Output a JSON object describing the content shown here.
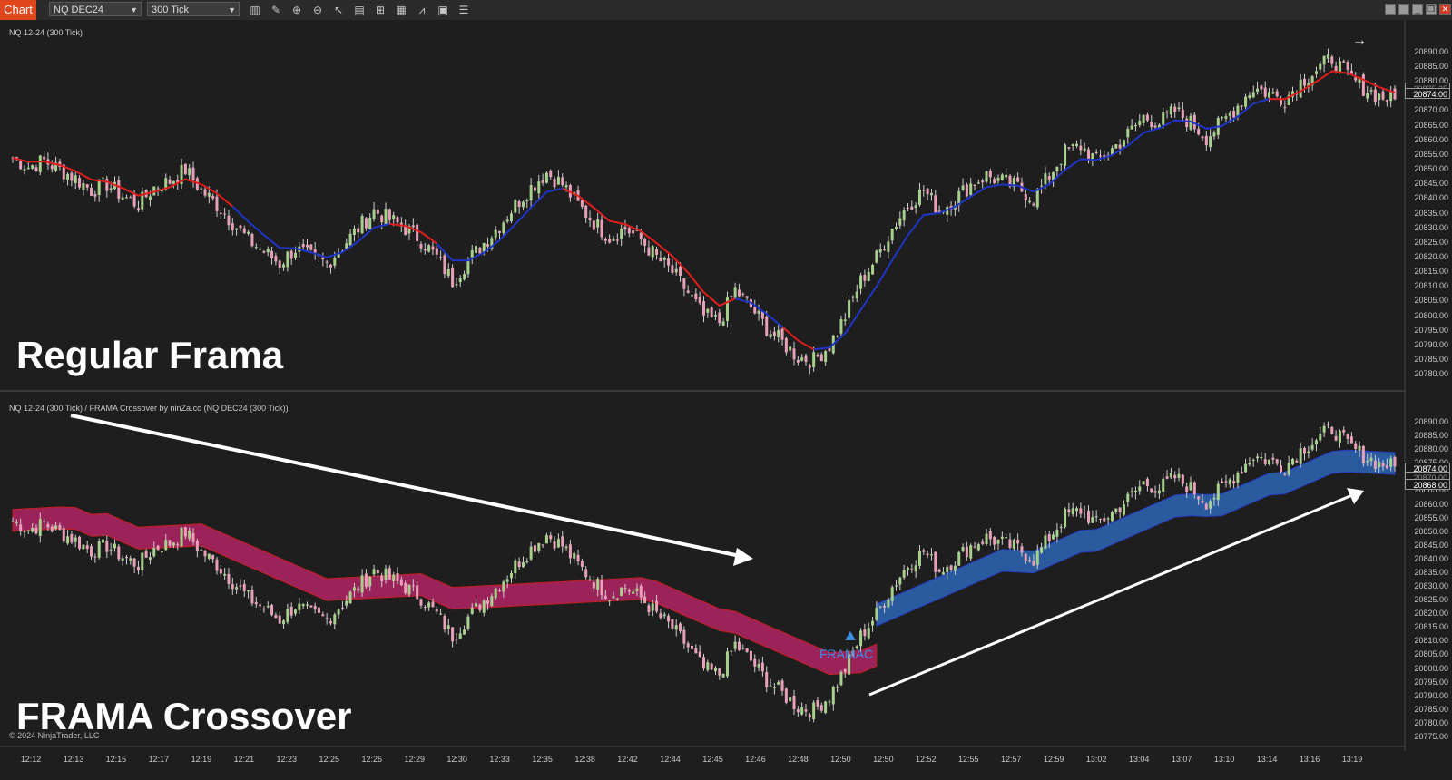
{
  "toolbar": {
    "chart_tab": "Chart",
    "instrument": "NQ DEC24",
    "interval": "300 Tick",
    "icons": [
      "bar-type-icon",
      "draw-tool-icon",
      "zoom-in-icon",
      "zoom-out-icon",
      "pointer-icon",
      "data-box-icon",
      "templates-icon",
      "strategy-icon",
      "indicators-icon",
      "properties-icon",
      "list-icon"
    ],
    "window_buttons": [
      "tile-icon",
      "tile-icon",
      "minimize-icon",
      "restore-icon",
      "close-icon"
    ]
  },
  "top_panel": {
    "title": "NQ 12-24 (300 Tick)",
    "label": "Regular Frama",
    "last_price": "20874.00",
    "hidden_price": "20875.25"
  },
  "bottom_panel": {
    "title": "NQ 12-24 (300 Tick) / FRAMA Crossover by ninZa.co (NQ DEC24 (300 Tick))",
    "label": "FRAMA Crossover",
    "signal_label": "FRAMAC",
    "last_price": "20874.00",
    "band_price": "20868.00",
    "hidden_price": "20870.00"
  },
  "copyright": "© 2024 NinjaTrader, LLC",
  "top_axis": [
    "20890.00",
    "20885.00",
    "20880.00",
    "20875.00",
    "20870.00",
    "20865.00",
    "20860.00",
    "20855.00",
    "20850.00",
    "20845.00",
    "20840.00",
    "20835.00",
    "20830.00",
    "20825.00",
    "20820.00",
    "20815.00",
    "20810.00",
    "20805.00",
    "20800.00",
    "20795.00",
    "20790.00",
    "20785.00",
    "20780.00"
  ],
  "bottom_axis": [
    "20890.00",
    "20885.00",
    "20880.00",
    "20875.00",
    "20870.00",
    "20865.00",
    "20860.00",
    "20855.00",
    "20850.00",
    "20845.00",
    "20840.00",
    "20835.00",
    "20830.00",
    "20825.00",
    "20820.00",
    "20815.00",
    "20810.00",
    "20805.00",
    "20800.00",
    "20795.00",
    "20790.00",
    "20785.00",
    "20780.00",
    "20775.00"
  ],
  "time_axis": [
    "12:12",
    "12:13",
    "12:15",
    "12:17",
    "12:19",
    "12:21",
    "12:23",
    "12:25",
    "12:26",
    "12:29",
    "12:30",
    "12:33",
    "12:35",
    "12:38",
    "12:42",
    "12:44",
    "12:45",
    "12:46",
    "12:48",
    "12:50",
    "12:50",
    "12:52",
    "12:55",
    "12:57",
    "12:59",
    "13:02",
    "13:04",
    "13:07",
    "13:10",
    "13:14",
    "13:16",
    "13:19"
  ],
  "colors": {
    "background": "#1e1e1e",
    "candle_up": "#a8d08d",
    "candle_down": "#e8a0b8",
    "frama_up": "#1f35c8",
    "frama_down": "#e01d1d",
    "band_bearish": "#a3245e",
    "band_bullish": "#2a5fa5",
    "signal": "#3a8ee6",
    "toolbar_tab": "#e0451b"
  },
  "chart_data": {
    "type": "candlestick",
    "instrument": "NQ 12-24",
    "interval": "300 Tick",
    "close_path": [
      [
        0,
        20854
      ],
      [
        1,
        20851
      ],
      [
        2,
        20853
      ],
      [
        3,
        20850
      ],
      [
        4,
        20847
      ],
      [
        5,
        20843
      ],
      [
        6,
        20845
      ],
      [
        7,
        20841
      ],
      [
        8,
        20838
      ],
      [
        9,
        20844
      ],
      [
        10,
        20846
      ],
      [
        11,
        20850
      ],
      [
        12,
        20843
      ],
      [
        13,
        20838
      ],
      [
        14,
        20832
      ],
      [
        15,
        20826
      ],
      [
        16,
        20822
      ],
      [
        17,
        20818
      ],
      [
        18,
        20823
      ],
      [
        19,
        20820
      ],
      [
        20,
        20818
      ],
      [
        21,
        20824
      ],
      [
        22,
        20830
      ],
      [
        23,
        20836
      ],
      [
        24,
        20833
      ],
      [
        25,
        20830
      ],
      [
        26,
        20826
      ],
      [
        27,
        20820
      ],
      [
        28,
        20812
      ],
      [
        29,
        20819
      ],
      [
        30,
        20825
      ],
      [
        31,
        20831
      ],
      [
        32,
        20838
      ],
      [
        33,
        20844
      ],
      [
        34,
        20849
      ],
      [
        35,
        20845
      ],
      [
        36,
        20838
      ],
      [
        37,
        20832
      ],
      [
        38,
        20827
      ],
      [
        39,
        20830
      ],
      [
        40,
        20826
      ],
      [
        41,
        20820
      ],
      [
        42,
        20815
      ],
      [
        43,
        20808
      ],
      [
        44,
        20800
      ],
      [
        45,
        20798
      ],
      [
        46,
        20809
      ],
      [
        47,
        20803
      ],
      [
        48,
        20796
      ],
      [
        49,
        20791
      ],
      [
        50,
        20786
      ],
      [
        51,
        20785
      ],
      [
        52,
        20790
      ],
      [
        53,
        20800
      ],
      [
        54,
        20812
      ],
      [
        55,
        20820
      ],
      [
        56,
        20830
      ],
      [
        57,
        20838
      ],
      [
        58,
        20843
      ],
      [
        59,
        20836
      ],
      [
        60,
        20840
      ],
      [
        61,
        20845
      ],
      [
        62,
        20848
      ],
      [
        63,
        20846
      ],
      [
        64,
        20844
      ],
      [
        65,
        20840
      ],
      [
        66,
        20848
      ],
      [
        67,
        20856
      ],
      [
        68,
        20858
      ],
      [
        69,
        20853
      ],
      [
        70,
        20857
      ],
      [
        71,
        20862
      ],
      [
        72,
        20868
      ],
      [
        73,
        20866
      ],
      [
        74,
        20870
      ],
      [
        75,
        20866
      ],
      [
        76,
        20861
      ],
      [
        77,
        20866
      ],
      [
        78,
        20872
      ],
      [
        79,
        20878
      ],
      [
        80,
        20876
      ],
      [
        81,
        20874
      ],
      [
        82,
        20880
      ],
      [
        83,
        20884
      ],
      [
        84,
        20888
      ],
      [
        85,
        20882
      ],
      [
        86,
        20878
      ],
      [
        87,
        20875
      ],
      [
        88,
        20874
      ]
    ],
    "top_frama": {
      "down_segments": [
        [
          0,
          14
        ],
        [
          24,
          27
        ],
        [
          35,
          46
        ],
        [
          49,
          51
        ],
        [
          57,
          57
        ],
        [
          63,
          63
        ],
        [
          69,
          69
        ],
        [
          80,
          88
        ]
      ],
      "up_segments": [
        [
          14,
          24
        ],
        [
          27,
          35
        ],
        [
          46,
          49
        ],
        [
          51,
          57
        ],
        [
          57,
          63
        ],
        [
          63,
          69
        ],
        [
          69,
          80
        ]
      ]
    },
    "bottom_band": {
      "bearish_range": [
        0,
        55
      ],
      "bullish_range": [
        55,
        88
      ],
      "signal_index": 55,
      "signal": "FRAMAC"
    },
    "annotations": [
      {
        "type": "arrow",
        "direction": "down-right",
        "note": "bearish trend"
      },
      {
        "type": "arrow",
        "direction": "up-right",
        "note": "bullish trend"
      }
    ],
    "ylim_top": [
      20777,
      20893
    ],
    "ylim_bottom": [
      20774,
      20892
    ]
  }
}
